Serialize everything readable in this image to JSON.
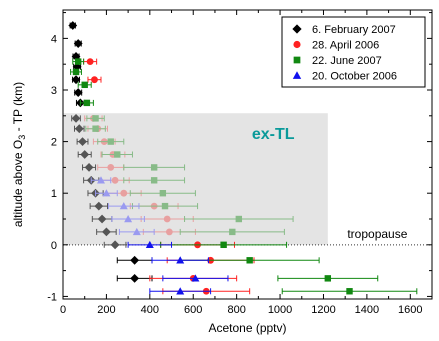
{
  "chart_data": {
    "type": "scatter",
    "xlabel": "Acetone (pptv)",
    "ylabel_main": "altitude above O",
    "ylabel_sub": "3",
    "ylabel_tail": " - TP (km)",
    "xlim": [
      0,
      1700
    ],
    "ylim": [
      -1.05,
      4.55
    ],
    "xticks": [
      "0",
      "200",
      "400",
      "600",
      "800",
      "1000",
      "1200",
      "1400",
      "1600"
    ],
    "xtick_values": [
      0,
      200,
      400,
      600,
      800,
      1000,
      1200,
      1400,
      1600
    ],
    "yticks": [
      "-1",
      "0",
      "1",
      "2",
      "3",
      "4"
    ],
    "ytick_values": [
      -1,
      0,
      1,
      2,
      3,
      4
    ],
    "grid": false,
    "legend_position": "top-right",
    "shaded_region": {
      "x": [
        0,
        1220
      ],
      "y": [
        0,
        2.55
      ],
      "color": "#e4e4e4"
    },
    "reference_line": {
      "y": 0,
      "style": "dotted"
    },
    "annotations": [
      {
        "text": "ex-TL",
        "x": 870,
        "y": 2.05,
        "color": "#0a9a9a"
      },
      {
        "text": "tropopause",
        "x": 1310,
        "y": 0.13,
        "color": "#000000"
      }
    ],
    "series": [
      {
        "name": "6. February 2007",
        "marker": "diamond",
        "color": "#000000",
        "points": [
          {
            "x": 45,
            "y": 4.25,
            "xerr": 12
          },
          {
            "x": 70,
            "y": 3.9,
            "xerr": 14
          },
          {
            "x": 60,
            "y": 3.65,
            "xerr": 14
          },
          {
            "x": 65,
            "y": 3.45,
            "xerr": 16
          },
          {
            "x": 60,
            "y": 3.2,
            "xerr": 16
          },
          {
            "x": 70,
            "y": 2.95,
            "xerr": 16
          },
          {
            "x": 80,
            "y": 2.75,
            "xerr": 18
          },
          {
            "x": 60,
            "y": 2.45,
            "xerr": 20,
            "color": "#555555"
          },
          {
            "x": 75,
            "y": 2.25,
            "xerr": 22,
            "color": "#555555"
          },
          {
            "x": 90,
            "y": 2.0,
            "xerr": 25,
            "color": "#555555"
          },
          {
            "x": 100,
            "y": 1.75,
            "xerr": 30,
            "color": "#555555"
          },
          {
            "x": 120,
            "y": 1.5,
            "xerr": 30,
            "color": "#555555"
          },
          {
            "x": 130,
            "y": 1.25,
            "xerr": 35,
            "color": "#555555"
          },
          {
            "x": 150,
            "y": 1.0,
            "xerr": 35,
            "color": "#555555"
          },
          {
            "x": 165,
            "y": 0.75,
            "xerr": 40,
            "color": "#555555"
          },
          {
            "x": 180,
            "y": 0.5,
            "xerr": 45,
            "color": "#555555"
          },
          {
            "x": 200,
            "y": 0.25,
            "xerr": 45,
            "color": "#555555"
          },
          {
            "x": 240,
            "y": 0.0,
            "xerr": 50,
            "color": "#555555"
          },
          {
            "x": 330,
            "y": -0.3,
            "xerr": 80
          },
          {
            "x": 330,
            "y": -0.65,
            "xerr": 80
          }
        ]
      },
      {
        "name": "28. April 2006",
        "marker": "circle",
        "color": "#ff2222",
        "points": [
          {
            "x": 125,
            "y": 3.55,
            "xerr": 30
          },
          {
            "x": 145,
            "y": 3.2,
            "xerr": 30
          },
          {
            "x": 140,
            "y": 2.45,
            "xerr": 40,
            "color": "#e8a0a0"
          },
          {
            "x": 160,
            "y": 2.25,
            "xerr": 45,
            "color": "#e8a0a0"
          },
          {
            "x": 190,
            "y": 2.0,
            "xerr": 50,
            "color": "#e8a0a0"
          },
          {
            "x": 230,
            "y": 1.75,
            "xerr": 55,
            "color": "#e8a0a0"
          },
          {
            "x": 220,
            "y": 1.5,
            "xerr": 60,
            "color": "#e8a0a0"
          },
          {
            "x": 240,
            "y": 1.25,
            "xerr": 65,
            "color": "#e8a0a0"
          },
          {
            "x": 280,
            "y": 1.0,
            "xerr": 80,
            "color": "#e8a0a0"
          },
          {
            "x": 420,
            "y": 0.75,
            "xerr": 110,
            "color": "#e8a0a0"
          },
          {
            "x": 480,
            "y": 0.5,
            "xerr": 120,
            "color": "#e8a0a0"
          },
          {
            "x": 490,
            "y": 0.25,
            "xerr": 120,
            "color": "#e8a0a0"
          },
          {
            "x": 620,
            "y": 0.0,
            "xerr": 170
          },
          {
            "x": 680,
            "y": -0.3,
            "xerr": 200
          },
          {
            "x": 600,
            "y": -0.65,
            "xerr": 200
          },
          {
            "x": 660,
            "y": -0.9,
            "xerr": 200
          }
        ]
      },
      {
        "name": "22. June 2007",
        "marker": "square",
        "color": "#118811",
        "points": [
          {
            "x": 70,
            "y": 3.55,
            "xerr": 25
          },
          {
            "x": 60,
            "y": 3.35,
            "xerr": 25
          },
          {
            "x": 100,
            "y": 3.1,
            "xerr": 30
          },
          {
            "x": 110,
            "y": 2.75,
            "xerr": 30
          },
          {
            "x": 150,
            "y": 2.45,
            "xerr": 40,
            "color": "#88bb88"
          },
          {
            "x": 150,
            "y": 2.25,
            "xerr": 45,
            "color": "#88bb88"
          },
          {
            "x": 220,
            "y": 2.0,
            "xerr": 60,
            "color": "#88bb88"
          },
          {
            "x": 250,
            "y": 1.75,
            "xerr": 70,
            "color": "#88bb88"
          },
          {
            "x": 420,
            "y": 1.5,
            "xerr": 140,
            "color": "#88bb88"
          },
          {
            "x": 420,
            "y": 1.25,
            "xerr": 140,
            "color": "#88bb88"
          },
          {
            "x": 460,
            "y": 1.0,
            "xerr": 150,
            "color": "#88bb88"
          },
          {
            "x": 470,
            "y": 0.75,
            "xerr": 150,
            "color": "#88bb88"
          },
          {
            "x": 810,
            "y": 0.5,
            "xerr": 250,
            "color": "#88bb88"
          },
          {
            "x": 780,
            "y": 0.25,
            "xerr": 240,
            "color": "#88bb88"
          },
          {
            "x": 740,
            "y": 0.0,
            "xerr": 290
          },
          {
            "x": 860,
            "y": -0.3,
            "xerr": 320
          },
          {
            "x": 1220,
            "y": -0.65,
            "xerr": 230
          },
          {
            "x": 1320,
            "y": -0.9,
            "xerr": 310
          }
        ]
      },
      {
        "name": "20. October 2006",
        "marker": "triangle",
        "color": "#1111ee",
        "points": [
          {
            "x": 175,
            "y": 1.25,
            "xerr": 45,
            "color": "#9a9af0"
          },
          {
            "x": 200,
            "y": 1.0,
            "xerr": 50,
            "color": "#9a9af0"
          },
          {
            "x": 280,
            "y": 0.75,
            "xerr": 70,
            "color": "#9a9af0"
          },
          {
            "x": 300,
            "y": 0.5,
            "xerr": 75,
            "color": "#9a9af0"
          },
          {
            "x": 340,
            "y": 0.25,
            "xerr": 80,
            "color": "#9a9af0"
          },
          {
            "x": 400,
            "y": 0.0,
            "xerr": 100
          },
          {
            "x": 540,
            "y": -0.3,
            "xerr": 130
          },
          {
            "x": 610,
            "y": -0.65,
            "xerr": 150
          },
          {
            "x": 540,
            "y": -0.9,
            "xerr": 140
          }
        ]
      }
    ]
  }
}
